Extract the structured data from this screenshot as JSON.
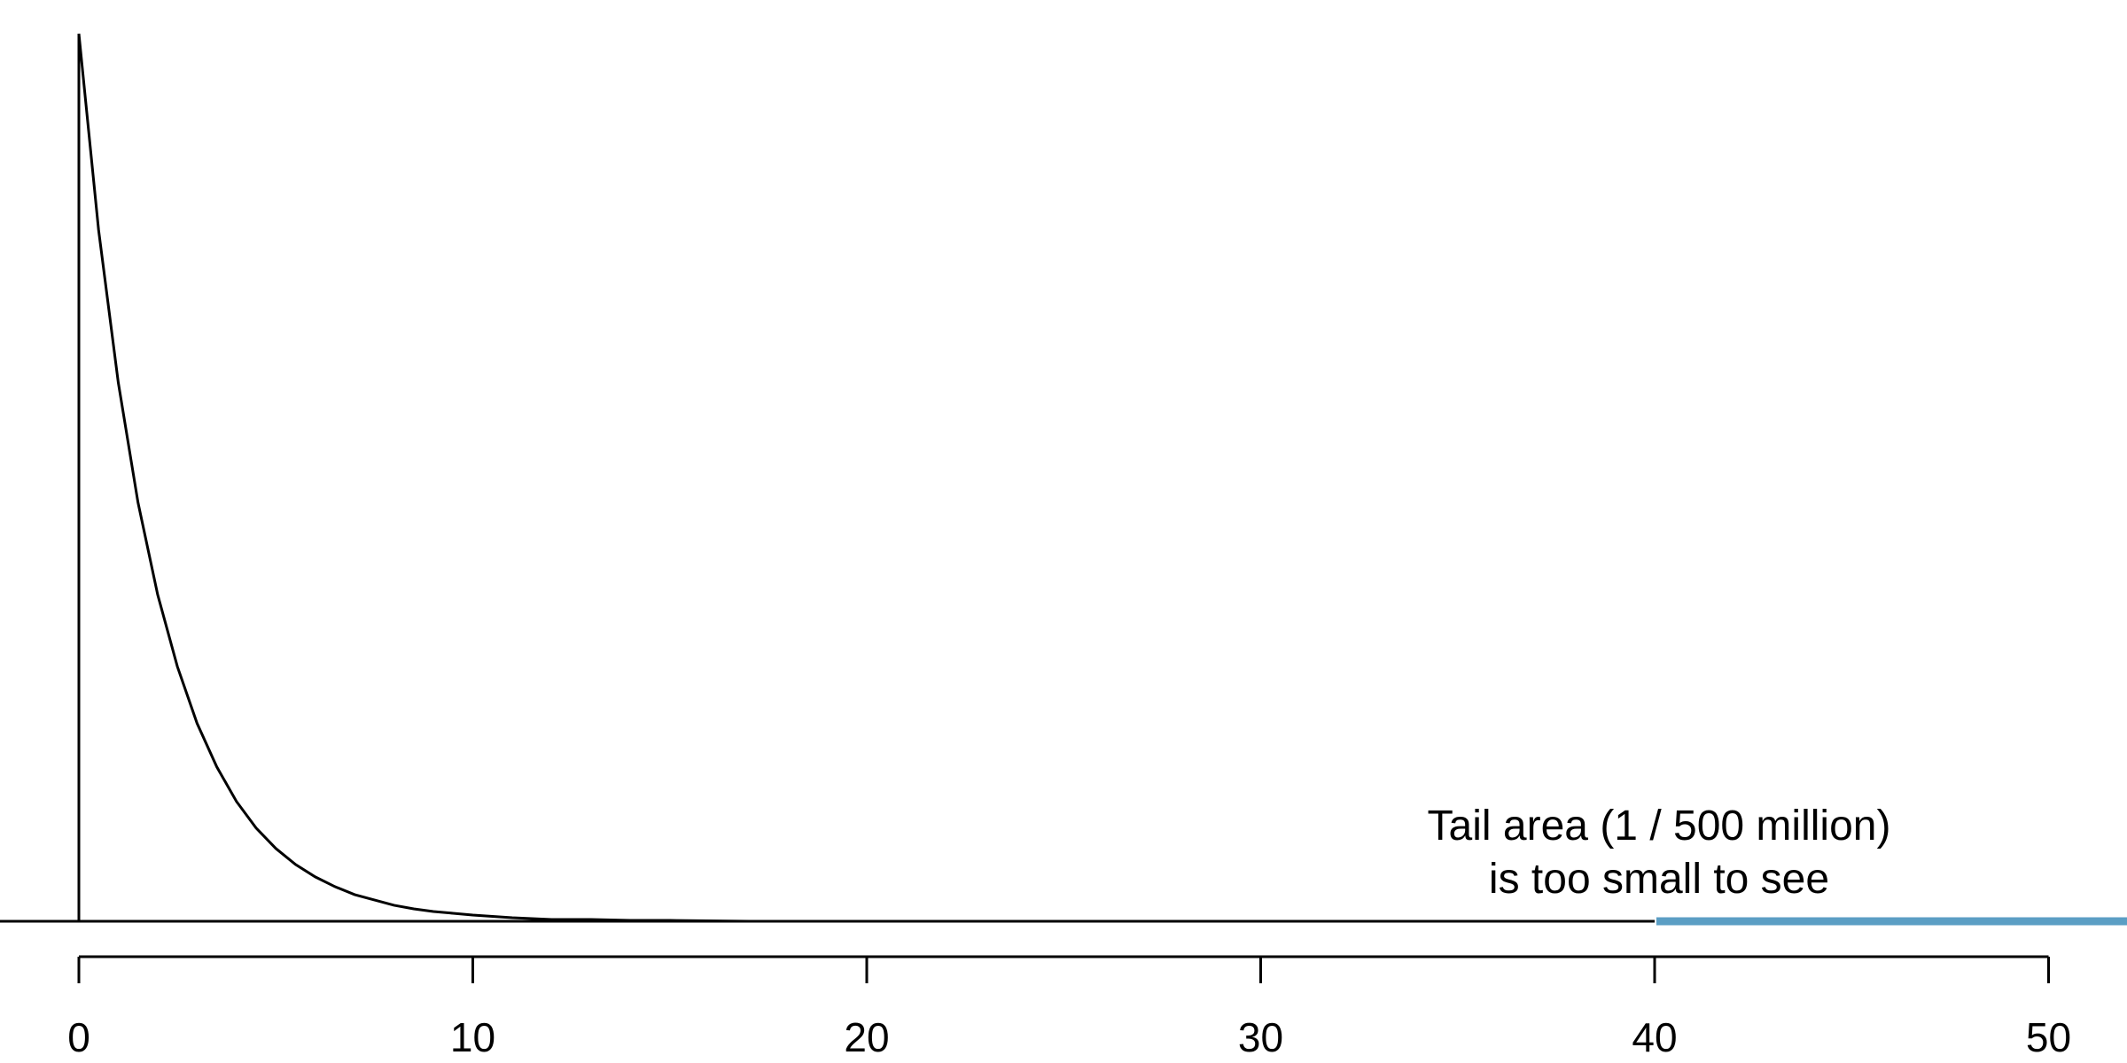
{
  "chart_data": {
    "type": "line",
    "title": "",
    "xlabel": "",
    "ylabel": "",
    "xlim": [
      -2,
      52
    ],
    "xticks": [
      0,
      10,
      20,
      30,
      40,
      50
    ],
    "xtick_labels": [
      "0",
      "10",
      "20",
      "30",
      "40",
      "50"
    ],
    "grid": false,
    "legend": "none",
    "series": [
      {
        "x": [
          0,
          0.5,
          1,
          1.5,
          2,
          2.5,
          3,
          3.5,
          4,
          4.5,
          5,
          5.5,
          6,
          6.5,
          7,
          7.5,
          8,
          8.5,
          9,
          9.5,
          10,
          11,
          12,
          13,
          14,
          15,
          17,
          20,
          25,
          30,
          35,
          40
        ],
        "y": [
          1.0,
          0.779,
          0.607,
          0.472,
          0.368,
          0.287,
          0.223,
          0.174,
          0.135,
          0.105,
          0.082,
          0.064,
          0.05,
          0.039,
          0.03,
          0.024,
          0.018,
          0.014,
          0.011,
          0.009,
          0.007,
          0.004,
          0.002,
          0.002,
          0.001,
          0.001,
          0.0,
          0.0,
          0.0,
          0.0,
          0.0,
          0.0
        ],
        "color": "#000000"
      }
    ],
    "shaded_tail": {
      "from": 40,
      "to": 52,
      "color": "#5b9ec4"
    },
    "annotation": {
      "lines": [
        "Tail area (1 / 500 million)",
        "is too small to see"
      ],
      "x": 40
    }
  }
}
